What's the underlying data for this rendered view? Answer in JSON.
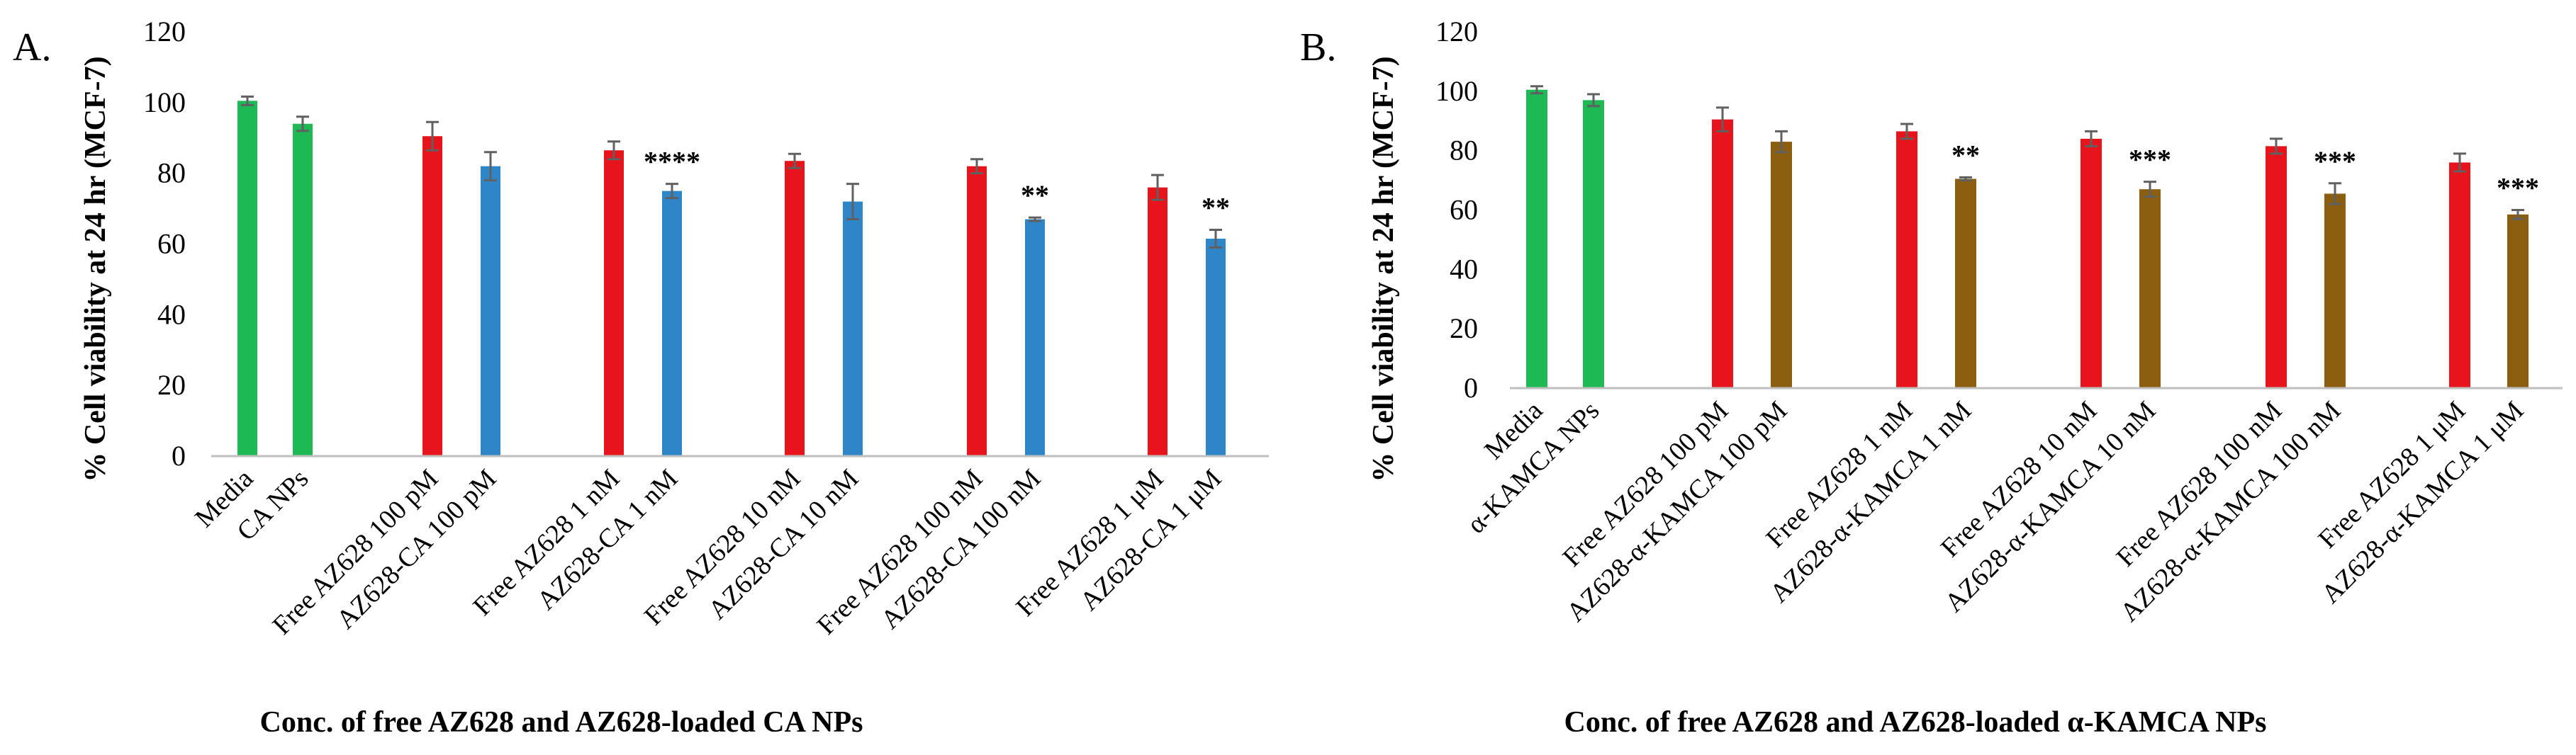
{
  "colors": {
    "media": "#1db954",
    "free": "#e8141c",
    "ca_loaded": "#2e86c8",
    "kamca_loaded": "#8b5e10",
    "axis": "#bfbfbf",
    "errorbar": "#606060"
  },
  "chart_data": [
    {
      "type": "bar",
      "panel_label": "A.",
      "title": "",
      "ylabel": "% Cell viability at 24 hr (MCF-7)",
      "xlabel": "Conc. of free AZ628 and AZ628-loaded CA NPs",
      "ylim": [
        0,
        120
      ],
      "yticks": [
        "0",
        "20",
        "40",
        "60",
        "80",
        "100",
        "120"
      ],
      "categories": [
        "Media",
        "CA NPs",
        "Free AZ628 100 pM",
        "AZ628-CA 100 pM",
        "Free AZ628 1 nM",
        "AZ628-CA 1 nM",
        "Free AZ628 10 nM",
        "AZ628-CA 10 nM",
        "Free AZ628 100 nM",
        "AZ628-CA 100 nM",
        "Free AZ628 1 μM",
        "AZ628-CA 1 μM"
      ],
      "values": [
        100.5,
        94,
        90.5,
        82,
        86.5,
        75,
        83.5,
        72,
        82,
        67,
        76,
        61.5
      ],
      "errors": [
        1.2,
        2,
        4,
        4,
        2.5,
        2,
        2,
        5,
        2,
        0.5,
        3.5,
        2.5
      ],
      "significance": [
        "",
        "",
        "",
        "",
        "",
        "****",
        "",
        "",
        "",
        "**",
        "",
        "**"
      ],
      "bar_types": [
        "media",
        "media",
        "free",
        "ca_loaded",
        "free",
        "ca_loaded",
        "free",
        "ca_loaded",
        "free",
        "ca_loaded",
        "free",
        "ca_loaded"
      ]
    },
    {
      "type": "bar",
      "panel_label": "B.",
      "title": "",
      "ylabel": "% Cell viability at 24 hr (MCF-7)",
      "xlabel": "Conc. of free AZ628 and AZ628-loaded α-KAMCA NPs",
      "ylim": [
        0,
        120
      ],
      "yticks": [
        "0",
        "20",
        "40",
        "60",
        "80",
        "100",
        "120"
      ],
      "categories": [
        "Media",
        "α-KAMCA NPs",
        "Free AZ628 100 pM",
        "AZ628-α-KAMCA 100 pM",
        "Free AZ628 1 nM",
        "AZ628-α-KAMCA 1 nM",
        "Free AZ628 10 nM",
        "AZ628-α-KAMCA 10 nM",
        "Free AZ628 100 nM",
        "AZ628-α-KAMCA 100 nM",
        "Free AZ628 1 μM",
        "AZ628-α-KAMCA 1 μM"
      ],
      "values": [
        100.5,
        97,
        90.5,
        83,
        86.5,
        70.5,
        84,
        67,
        81.5,
        65.5,
        76,
        58.5
      ],
      "errors": [
        1.2,
        2,
        4,
        3.5,
        2.5,
        0.5,
        2.5,
        2.5,
        2.5,
        3.5,
        3,
        1.5
      ],
      "significance": [
        "",
        "",
        "",
        "",
        "",
        "**",
        "",
        "***",
        "",
        "***",
        "",
        "***"
      ],
      "bar_types": [
        "media",
        "media",
        "free",
        "kamca_loaded",
        "free",
        "kamca_loaded",
        "free",
        "kamca_loaded",
        "free",
        "kamca_loaded",
        "free",
        "kamca_loaded"
      ]
    }
  ]
}
